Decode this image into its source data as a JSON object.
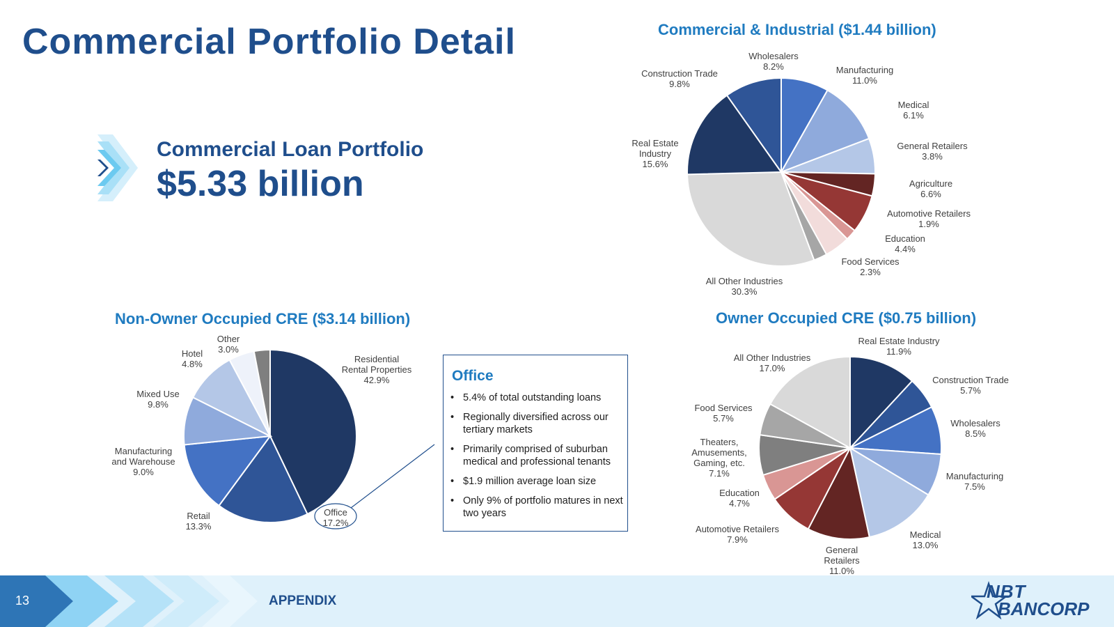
{
  "header": {
    "title": "Commercial Portfolio Detail"
  },
  "summary": {
    "label": "Commercial Loan Portfolio",
    "amount": "$5.33 billion"
  },
  "office_box": {
    "title": "Office",
    "bullets": [
      "5.4% of total outstanding loans",
      "Regionally diversified across our tertiary markets",
      "Primarily comprised of suburban medical and professional tenants",
      "$1.9 million average loan size",
      "Only 9% of portfolio matures in next two years"
    ]
  },
  "footer": {
    "page_number": "13",
    "section": "APPENDIX",
    "logo_line1": "NBT",
    "logo_line2": "BANCORP"
  },
  "chart_data": [
    {
      "type": "pie",
      "title": "Commercial & Industrial ($1.44 billion)",
      "slices": [
        {
          "label": "Wholesalers",
          "value": 8.2,
          "display": "8.2%",
          "color": "#4472c4"
        },
        {
          "label": "Manufacturing",
          "value": 11.0,
          "display": "11.0%",
          "color": "#8faadc"
        },
        {
          "label": "Medical",
          "value": 6.1,
          "display": "6.1%",
          "color": "#b4c7e7"
        },
        {
          "label": "General Retailers",
          "value": 3.8,
          "display": "3.8%",
          "color": "#632523"
        },
        {
          "label": "Agriculture",
          "value": 6.6,
          "display": "6.6%",
          "color": "#953735"
        },
        {
          "label": "Automotive Retailers",
          "value": 1.9,
          "display": "1.9%",
          "color": "#d99694"
        },
        {
          "label": "Education",
          "value": 4.4,
          "display": "4.4%",
          "color": "#f2dcdb"
        },
        {
          "label": "Food Services",
          "value": 2.3,
          "display": "2.3%",
          "color": "#a6a6a6"
        },
        {
          "label": "All Other Industries",
          "value": 30.3,
          "display": "30.3%",
          "color": "#d9d9d9"
        },
        {
          "label": "Real Estate Industry",
          "value": 15.6,
          "display": "15.6%",
          "color": "#1f3864"
        },
        {
          "label": "Construction Trade",
          "value": 9.8,
          "display": "9.8%",
          "color": "#2f5597"
        }
      ]
    },
    {
      "type": "pie",
      "title": "Non-Owner Occupied CRE ($3.14 billion)",
      "slices": [
        {
          "label": "Residential Rental Properties",
          "value": 42.9,
          "display": "42.9%",
          "color": "#1f3864"
        },
        {
          "label": "Office",
          "value": 17.2,
          "display": "17.2%",
          "color": "#2f5597"
        },
        {
          "label": "Retail",
          "value": 13.3,
          "display": "13.3%",
          "color": "#4472c4"
        },
        {
          "label": "Manufacturing and Warehouse",
          "value": 9.0,
          "display": "9.0%",
          "color": "#8faadc"
        },
        {
          "label": "Mixed Use",
          "value": 9.8,
          "display": "9.8%",
          "color": "#b4c7e7"
        },
        {
          "label": "Hotel",
          "value": 4.8,
          "display": "4.8%",
          "color": "#eef2fa"
        },
        {
          "label": "Other",
          "value": 3.0,
          "display": "3.0%",
          "color": "#7f7f7f"
        }
      ]
    },
    {
      "type": "pie",
      "title": "Owner Occupied CRE ($0.75 billion)",
      "slices": [
        {
          "label": "Real Estate Industry",
          "value": 11.9,
          "display": "11.9%",
          "color": "#1f3864"
        },
        {
          "label": "Construction Trade",
          "value": 5.7,
          "display": "5.7%",
          "color": "#2f5597"
        },
        {
          "label": "Wholesalers",
          "value": 8.5,
          "display": "8.5%",
          "color": "#4472c4"
        },
        {
          "label": "Manufacturing",
          "value": 7.5,
          "display": "7.5%",
          "color": "#8faadc"
        },
        {
          "label": "Medical",
          "value": 13.0,
          "display": "13.0%",
          "color": "#b4c7e7"
        },
        {
          "label": "General Retailers",
          "value": 11.0,
          "display": "11.0%",
          "color": "#632523"
        },
        {
          "label": "Automotive Retailers",
          "value": 7.9,
          "display": "7.9%",
          "color": "#953735"
        },
        {
          "label": "Education",
          "value": 4.7,
          "display": "4.7%",
          "color": "#d99694"
        },
        {
          "label": "Theaters, Amusements, Gaming, etc.",
          "value": 7.1,
          "display": "7.1%",
          "color": "#7f7f7f"
        },
        {
          "label": "Food Services",
          "value": 5.7,
          "display": "5.7%",
          "color": "#a6a6a6"
        },
        {
          "label": "All Other Industries",
          "value": 17.0,
          "display": "17.0%",
          "color": "#d9d9d9"
        }
      ]
    }
  ]
}
